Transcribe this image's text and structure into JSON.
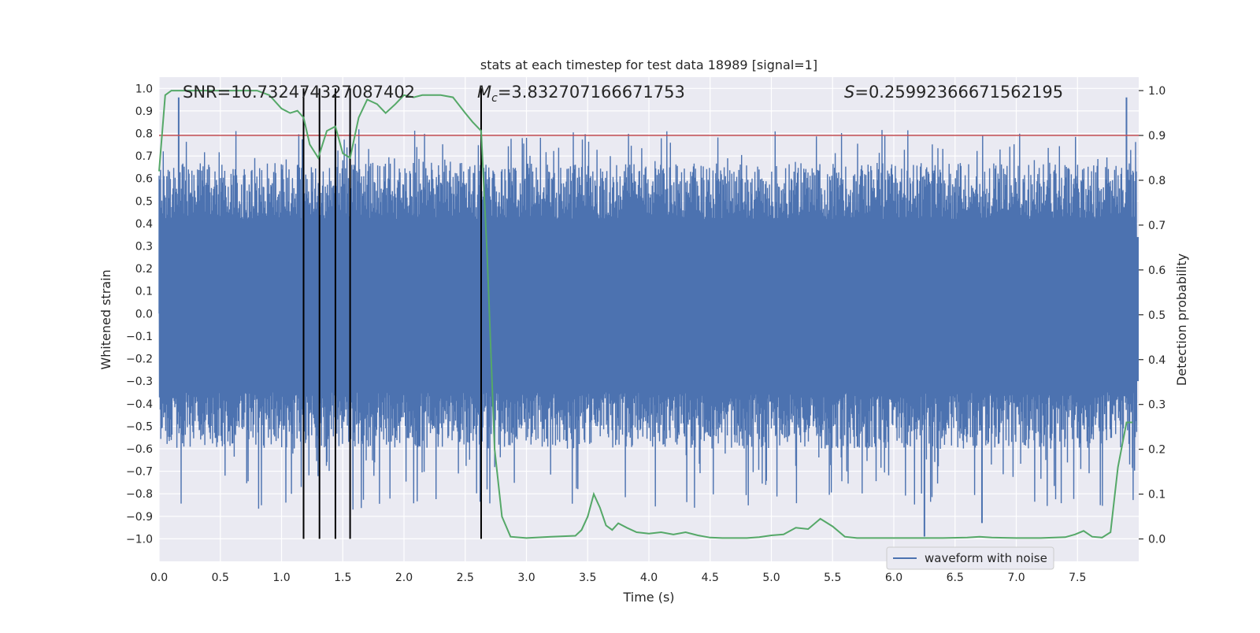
{
  "chart_data": {
    "type": "line",
    "title": "stats at each timestep for test data 18989 [signal=1]",
    "xlabel": "Time (s)",
    "ylabel_left": "Whitened strain",
    "ylabel_right": "Detection probability",
    "xlim": [
      0.0,
      8.0
    ],
    "ylim_left": [
      -1.1,
      1.05
    ],
    "ylim_right": [
      -0.05,
      1.03
    ],
    "x_ticks": [
      "0.0",
      "0.5",
      "1.0",
      "1.5",
      "2.0",
      "2.5",
      "3.0",
      "3.5",
      "4.0",
      "4.5",
      "5.0",
      "5.5",
      "6.0",
      "6.5",
      "7.0",
      "7.5"
    ],
    "x_tick_values": [
      0.0,
      0.5,
      1.0,
      1.5,
      2.0,
      2.5,
      3.0,
      3.5,
      4.0,
      4.5,
      5.0,
      5.5,
      6.0,
      6.5,
      7.0,
      7.5
    ],
    "y_ticks_left": [
      "1.0",
      "0.9",
      "0.8",
      "0.7",
      "0.6",
      "0.5",
      "0.4",
      "0.3",
      "0.2",
      "0.1",
      "0.0",
      "−0.1",
      "−0.2",
      "−0.3",
      "−0.4",
      "−0.5",
      "−0.6",
      "−0.7",
      "−0.8",
      "−0.9",
      "−1.0"
    ],
    "y_tick_values_left": [
      1.0,
      0.9,
      0.8,
      0.7,
      0.6,
      0.5,
      0.4,
      0.3,
      0.2,
      0.1,
      0.0,
      -0.1,
      -0.2,
      -0.3,
      -0.4,
      -0.5,
      -0.6,
      -0.7,
      -0.8,
      -0.9,
      -1.0
    ],
    "y_ticks_right": [
      "1.0",
      "0.9",
      "0.8",
      "0.7",
      "0.6",
      "0.5",
      "0.4",
      "0.3",
      "0.2",
      "0.1",
      "0.0"
    ],
    "y_tick_values_right": [
      1.0,
      0.9,
      0.8,
      0.7,
      0.6,
      0.5,
      0.4,
      0.3,
      0.2,
      0.1,
      0.0
    ],
    "annotations": {
      "snr": "SNR=10.732474327087402",
      "mc_symbol": "M",
      "mc_sub": "c",
      "mc_value": "=3.832707166671753",
      "s_symbol": "S",
      "s_value": "=0.25992366671562195"
    },
    "legend": {
      "label": "waveform with noise",
      "position": "lower-right"
    },
    "threshold": 0.9,
    "vlines": [
      1.18,
      1.31,
      1.44,
      1.56,
      2.63
    ],
    "waveform": {
      "name": "waveform with noise",
      "seed": 18989,
      "n_samples": 1400,
      "envelope_top": 0.42,
      "envelope_bottom": -0.35,
      "max_spike": 0.96,
      "min_spike": -0.99
    },
    "detection_probability": {
      "name": "Detection probability",
      "x": [
        0.0,
        0.05,
        0.1,
        0.15,
        0.2,
        0.3,
        0.4,
        0.5,
        0.6,
        0.7,
        0.8,
        0.9,
        1.0,
        1.07,
        1.13,
        1.18,
        1.23,
        1.3,
        1.37,
        1.44,
        1.5,
        1.56,
        1.63,
        1.7,
        1.78,
        1.85,
        1.93,
        2.0,
        2.08,
        2.15,
        2.2,
        2.3,
        2.4,
        2.5,
        2.56,
        2.63,
        2.68,
        2.74,
        2.8,
        2.87,
        3.0,
        3.2,
        3.4,
        3.45,
        3.5,
        3.55,
        3.6,
        3.65,
        3.7,
        3.75,
        3.82,
        3.9,
        4.0,
        4.1,
        4.2,
        4.3,
        4.4,
        4.5,
        4.6,
        4.8,
        4.9,
        5.0,
        5.1,
        5.2,
        5.3,
        5.4,
        5.5,
        5.6,
        5.7,
        5.8,
        6.0,
        6.2,
        6.4,
        6.6,
        6.7,
        6.8,
        7.0,
        7.2,
        7.4,
        7.48,
        7.55,
        7.62,
        7.7,
        7.77,
        7.83,
        7.9,
        7.95
      ],
      "y": [
        0.82,
        0.99,
        1.0,
        1.0,
        1.0,
        1.0,
        1.0,
        1.0,
        1.0,
        1.0,
        1.0,
        0.99,
        0.96,
        0.95,
        0.955,
        0.94,
        0.88,
        0.85,
        0.91,
        0.92,
        0.86,
        0.85,
        0.94,
        0.98,
        0.97,
        0.95,
        0.97,
        0.99,
        0.985,
        0.99,
        0.99,
        0.99,
        0.985,
        0.95,
        0.93,
        0.91,
        0.63,
        0.2,
        0.05,
        0.005,
        0.002,
        0.005,
        0.007,
        0.02,
        0.05,
        0.1,
        0.07,
        0.03,
        0.02,
        0.035,
        0.025,
        0.015,
        0.012,
        0.015,
        0.01,
        0.015,
        0.008,
        0.003,
        0.002,
        0.002,
        0.004,
        0.008,
        0.01,
        0.025,
        0.022,
        0.045,
        0.028,
        0.005,
        0.002,
        0.002,
        0.002,
        0.002,
        0.002,
        0.003,
        0.005,
        0.003,
        0.002,
        0.002,
        0.004,
        0.01,
        0.018,
        0.005,
        0.003,
        0.015,
        0.16,
        0.26,
        0.26
      ]
    },
    "colors": {
      "background": "#eaeaf2",
      "grid": "#ffffff",
      "waveform": "#4c72b0",
      "probability": "#55a868",
      "threshold": "#c44e52",
      "vline": "#000000",
      "text": "#262626"
    }
  }
}
